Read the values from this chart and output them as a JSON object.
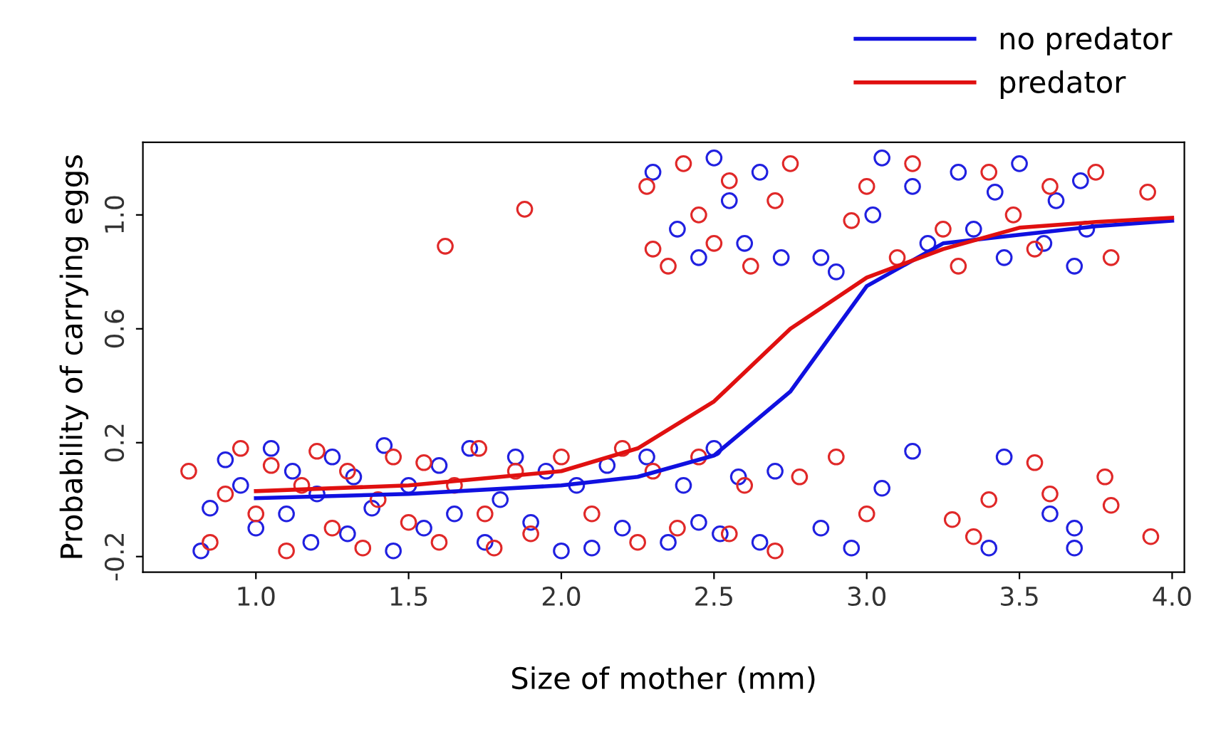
{
  "chart_data": {
    "type": "scatter",
    "xlabel": "Size of mother (mm)",
    "ylabel": "Probability of carrying eggs",
    "xlim": [
      0.63,
      4.04
    ],
    "ylim": [
      -0.255,
      1.255
    ],
    "xticks": [
      {
        "value": 1,
        "label": "1.0"
      },
      {
        "value": 1.5,
        "label": "1.5"
      },
      {
        "value": 2,
        "label": "2.0"
      },
      {
        "value": 2.5,
        "label": "2.5"
      },
      {
        "value": 3,
        "label": "3.0"
      },
      {
        "value": 3.5,
        "label": "3.5"
      },
      {
        "value": 4,
        "label": "4.0"
      }
    ],
    "yticks": [
      -0.2,
      0.2,
      0.6,
      {
        "value": 1,
        "label": "1.0"
      }
    ],
    "grid": false,
    "legend": "top right",
    "series": [
      {
        "marker": "circle",
        "color": "#2020e0",
        "x": [
          0.82,
          0.85,
          0.9,
          0.95,
          1.0,
          1.05,
          1.1,
          1.12,
          1.18,
          1.2,
          1.25,
          1.3,
          1.32,
          1.38,
          1.42,
          1.45,
          1.5,
          1.55,
          1.6,
          1.65,
          1.7,
          1.75,
          1.8,
          1.85,
          1.9,
          1.95,
          2.0,
          2.05,
          2.1,
          2.15,
          2.2,
          2.28,
          2.35,
          2.4,
          2.45,
          2.5,
          2.52,
          2.58,
          2.65,
          2.7,
          2.85,
          2.95,
          3.05,
          3.15,
          3.4,
          3.45,
          3.6,
          3.68,
          3.68,
          2.3,
          2.38,
          2.45,
          2.5,
          2.55,
          2.6,
          2.65,
          2.72,
          2.85,
          2.9,
          3.02,
          3.05,
          3.15,
          3.2,
          3.3,
          3.35,
          3.42,
          3.45,
          3.5,
          3.58,
          3.62,
          3.68,
          3.7,
          3.72
        ],
        "values": [
          -0.18,
          -0.03,
          0.14,
          0.05,
          -0.1,
          0.18,
          -0.05,
          0.1,
          -0.15,
          0.02,
          0.15,
          -0.12,
          0.08,
          -0.03,
          0.19,
          -0.18,
          0.05,
          -0.1,
          0.12,
          -0.05,
          0.18,
          -0.15,
          0.0,
          0.15,
          -0.08,
          0.1,
          -0.18,
          0.05,
          -0.17,
          0.12,
          -0.1,
          0.15,
          -0.15,
          0.05,
          -0.08,
          0.18,
          -0.12,
          0.08,
          -0.15,
          0.1,
          -0.1,
          -0.17,
          0.04,
          0.17,
          -0.17,
          0.15,
          -0.05,
          -0.17,
          -0.1,
          1.15,
          0.95,
          0.85,
          1.2,
          1.05,
          0.9,
          1.15,
          0.85,
          0.85,
          0.8,
          1.0,
          1.2,
          1.1,
          0.9,
          1.15,
          0.95,
          1.08,
          0.85,
          1.18,
          0.9,
          1.05,
          0.82,
          1.12,
          0.95
        ]
      },
      {
        "marker": "circle",
        "color": "#e02828",
        "x": [
          0.78,
          0.85,
          0.9,
          0.95,
          1.0,
          1.05,
          1.1,
          1.15,
          1.2,
          1.25,
          1.3,
          1.35,
          1.4,
          1.45,
          1.5,
          1.55,
          1.6,
          1.65,
          1.73,
          1.75,
          1.78,
          1.85,
          1.9,
          2.0,
          2.1,
          2.2,
          2.25,
          2.3,
          2.38,
          2.45,
          2.55,
          2.6,
          2.7,
          2.78,
          2.9,
          3.0,
          3.28,
          3.35,
          3.4,
          3.55,
          3.6,
          3.78,
          3.8,
          3.93,
          1.62,
          1.88,
          2.28,
          2.3,
          2.35,
          2.4,
          2.45,
          2.5,
          2.55,
          2.62,
          2.7,
          2.75,
          2.95,
          3.0,
          3.1,
          3.15,
          3.25,
          3.3,
          3.4,
          3.48,
          3.55,
          3.6,
          3.75,
          3.8,
          3.92
        ],
        "values": [
          0.1,
          -0.15,
          0.02,
          0.18,
          -0.05,
          0.12,
          -0.18,
          0.05,
          0.17,
          -0.1,
          0.1,
          -0.17,
          0.0,
          0.15,
          -0.08,
          0.13,
          -0.15,
          0.05,
          0.18,
          -0.05,
          -0.17,
          0.1,
          -0.12,
          0.15,
          -0.05,
          0.18,
          -0.15,
          0.1,
          -0.1,
          0.15,
          -0.12,
          0.05,
          -0.18,
          0.08,
          0.15,
          -0.05,
          -0.07,
          -0.13,
          0.0,
          0.13,
          0.02,
          0.08,
          -0.02,
          -0.13,
          0.89,
          1.02,
          1.1,
          0.88,
          0.82,
          1.18,
          1.0,
          0.9,
          1.12,
          0.82,
          1.05,
          1.18,
          0.98,
          1.1,
          0.85,
          1.18,
          0.95,
          0.82,
          1.15,
          1.0,
          0.88,
          1.1,
          1.15,
          0.85,
          1.08
        ]
      },
      {
        "type": "line",
        "name": "no predator",
        "color": "#1010e0",
        "x": [
          1.0,
          1.5,
          2.0,
          2.25,
          2.5,
          2.75,
          3.0,
          3.25,
          3.5,
          3.75,
          4.0
        ],
        "values": [
          0.005,
          0.02,
          0.05,
          0.08,
          0.155,
          0.38,
          0.75,
          0.9,
          0.93,
          0.96,
          0.98
        ]
      },
      {
        "type": "line",
        "name": "predator",
        "color": "#e01010",
        "x": [
          1.0,
          1.5,
          2.0,
          2.25,
          2.5,
          2.75,
          3.0,
          3.25,
          3.5,
          3.75,
          4.0
        ],
        "values": [
          0.03,
          0.05,
          0.1,
          0.18,
          0.345,
          0.6,
          0.78,
          0.88,
          0.955,
          0.975,
          0.99
        ]
      }
    ]
  }
}
